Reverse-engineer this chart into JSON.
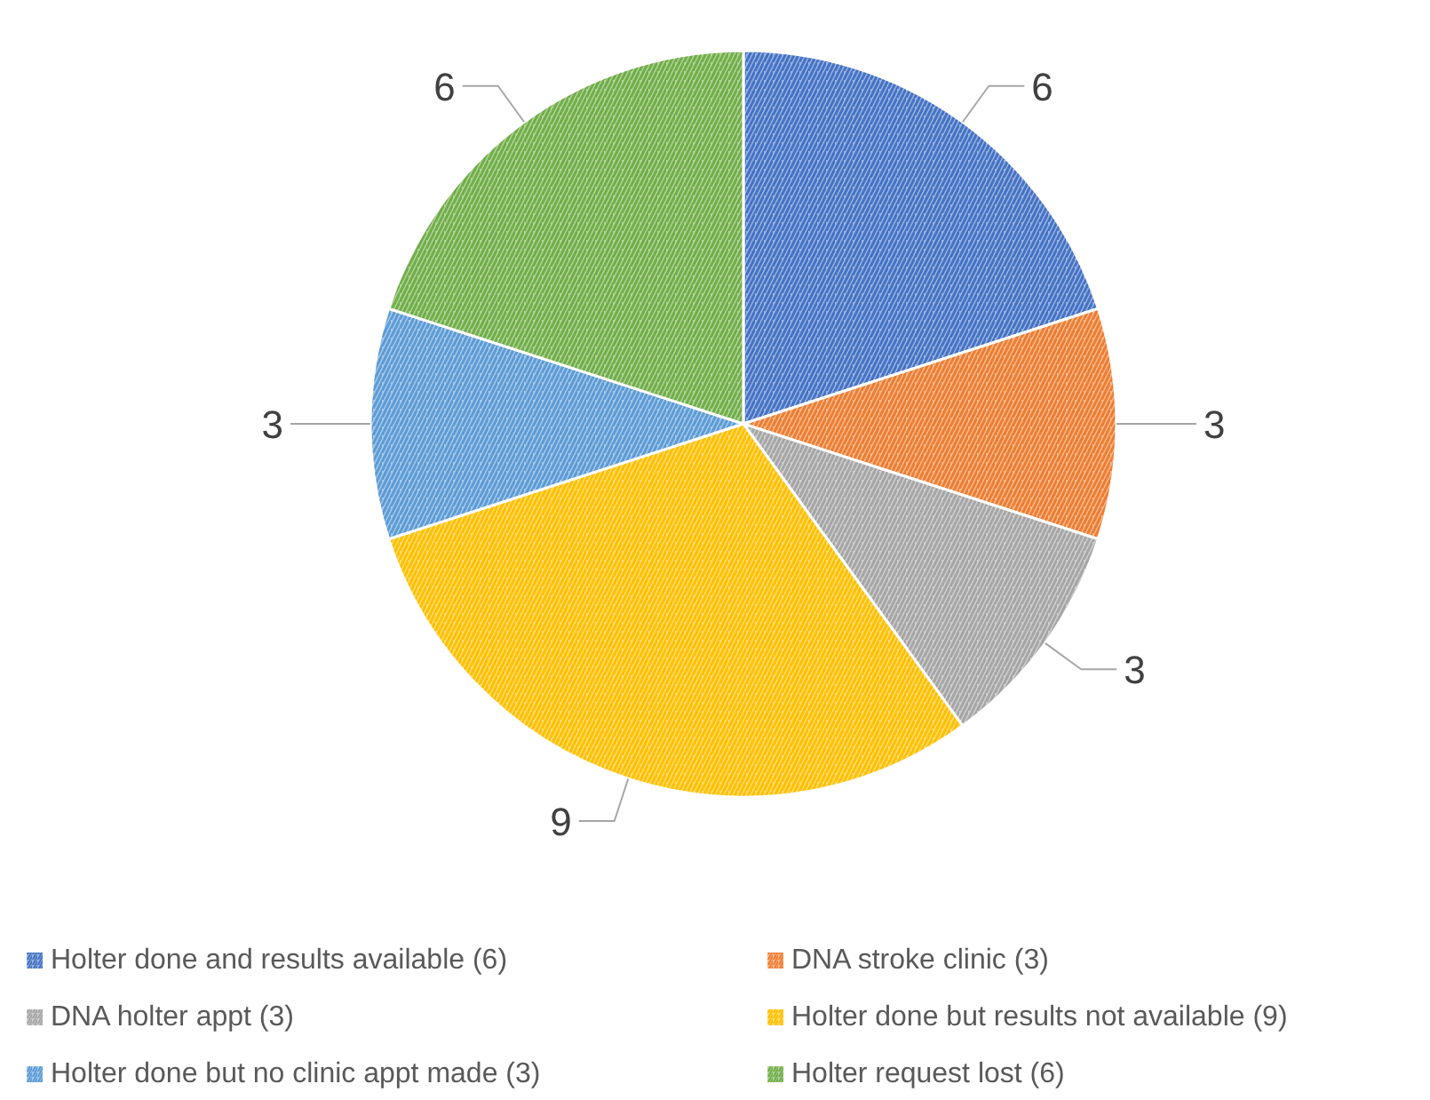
{
  "chart_data": {
    "type": "pie",
    "categories": [
      "Holter done and results available (6)",
      "DNA stroke clinic (3)",
      "DNA holter appt (3)",
      "Holter done but results not available (9)",
      "Holter done but no clinic appt made (3)",
      "Holter request lost (6)"
    ],
    "values": [
      6,
      3,
      3,
      9,
      3,
      6
    ],
    "colors": [
      "#4472c4",
      "#ed7d31",
      "#a5a5a5",
      "#ffc000",
      "#5b9bd5",
      "#70ad47"
    ],
    "data_labels": true,
    "legend": "bottom"
  }
}
